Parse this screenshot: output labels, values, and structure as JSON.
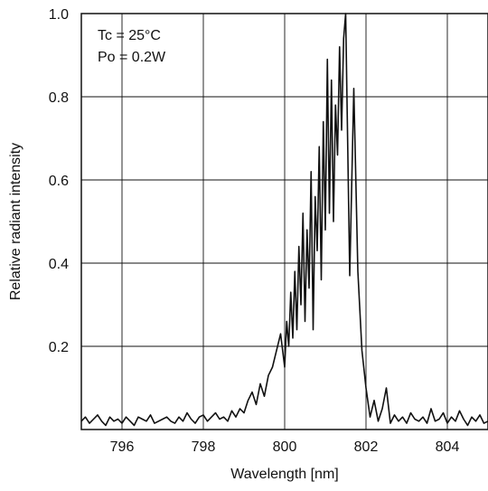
{
  "chart_data": {
    "type": "line",
    "title": "",
    "xlabel": "Wavelength [nm]",
    "ylabel": "Relative radiant intensity",
    "xlim": [
      795,
      805
    ],
    "ylim": [
      0,
      1.0
    ],
    "x_ticks": [
      796,
      798,
      800,
      802,
      804
    ],
    "x_tick_labels": [
      "796",
      "798",
      "800",
      "802",
      "804"
    ],
    "y_ticks": [
      0.2,
      0.4,
      0.6,
      0.8,
      1.0
    ],
    "y_tick_labels": [
      "0.2",
      "0.4",
      "0.6",
      "0.8",
      "1.0"
    ],
    "grid": true,
    "annotations": [
      "Tc = 25°C",
      "Po = 0.2W"
    ],
    "series": [
      {
        "x": [
          795.0,
          795.1,
          795.2,
          795.3,
          795.4,
          795.5,
          795.6,
          795.7,
          795.8,
          795.9,
          796.0,
          796.1,
          796.2,
          796.3,
          796.4,
          796.5,
          796.6,
          796.7,
          796.8,
          796.9,
          797.0,
          797.1,
          797.2,
          797.3,
          797.4,
          797.5,
          797.6,
          797.7,
          797.8,
          797.9,
          798.0,
          798.1,
          798.2,
          798.3,
          798.4,
          798.5,
          798.6,
          798.7,
          798.8,
          798.9,
          799.0,
          799.1,
          799.2,
          799.3,
          799.4,
          799.5,
          799.6,
          799.7,
          799.8,
          799.9,
          800.0,
          800.05,
          800.1,
          800.15,
          800.2,
          800.25,
          800.3,
          800.35,
          800.4,
          800.45,
          800.5,
          800.55,
          800.6,
          800.65,
          800.7,
          800.75,
          800.8,
          800.85,
          800.9,
          800.95,
          801.0,
          801.05,
          801.1,
          801.15,
          801.2,
          801.25,
          801.3,
          801.35,
          801.4,
          801.45,
          801.5,
          801.6,
          801.7,
          801.8,
          801.9,
          802.0,
          802.1,
          802.2,
          802.3,
          802.4,
          802.5,
          802.6,
          802.7,
          802.8,
          802.9,
          803.0,
          803.1,
          803.2,
          803.3,
          803.4,
          803.5,
          803.6,
          803.7,
          803.8,
          803.9,
          804.0,
          804.1,
          804.2,
          804.3,
          804.4,
          804.5,
          804.6,
          804.7,
          804.8,
          804.9,
          805.0
        ],
        "y": [
          0.02,
          0.03,
          0.015,
          0.025,
          0.035,
          0.02,
          0.01,
          0.03,
          0.02,
          0.025,
          0.015,
          0.03,
          0.02,
          0.01,
          0.03,
          0.025,
          0.02,
          0.035,
          0.015,
          0.02,
          0.025,
          0.03,
          0.02,
          0.015,
          0.03,
          0.02,
          0.04,
          0.025,
          0.015,
          0.03,
          0.035,
          0.02,
          0.03,
          0.04,
          0.025,
          0.03,
          0.02,
          0.045,
          0.03,
          0.05,
          0.04,
          0.07,
          0.09,
          0.06,
          0.11,
          0.08,
          0.13,
          0.15,
          0.19,
          0.23,
          0.15,
          0.26,
          0.2,
          0.33,
          0.22,
          0.38,
          0.24,
          0.44,
          0.3,
          0.52,
          0.26,
          0.48,
          0.34,
          0.62,
          0.24,
          0.56,
          0.43,
          0.68,
          0.36,
          0.74,
          0.48,
          0.89,
          0.52,
          0.84,
          0.5,
          0.78,
          0.66,
          0.92,
          0.72,
          0.94,
          1.0,
          0.37,
          0.82,
          0.38,
          0.19,
          0.1,
          0.03,
          0.07,
          0.02,
          0.05,
          0.1,
          0.015,
          0.035,
          0.02,
          0.03,
          0.015,
          0.04,
          0.025,
          0.02,
          0.03,
          0.015,
          0.05,
          0.02,
          0.025,
          0.04,
          0.015,
          0.03,
          0.02,
          0.045,
          0.025,
          0.01,
          0.03,
          0.02,
          0.035,
          0.015,
          0.02
        ]
      }
    ]
  }
}
